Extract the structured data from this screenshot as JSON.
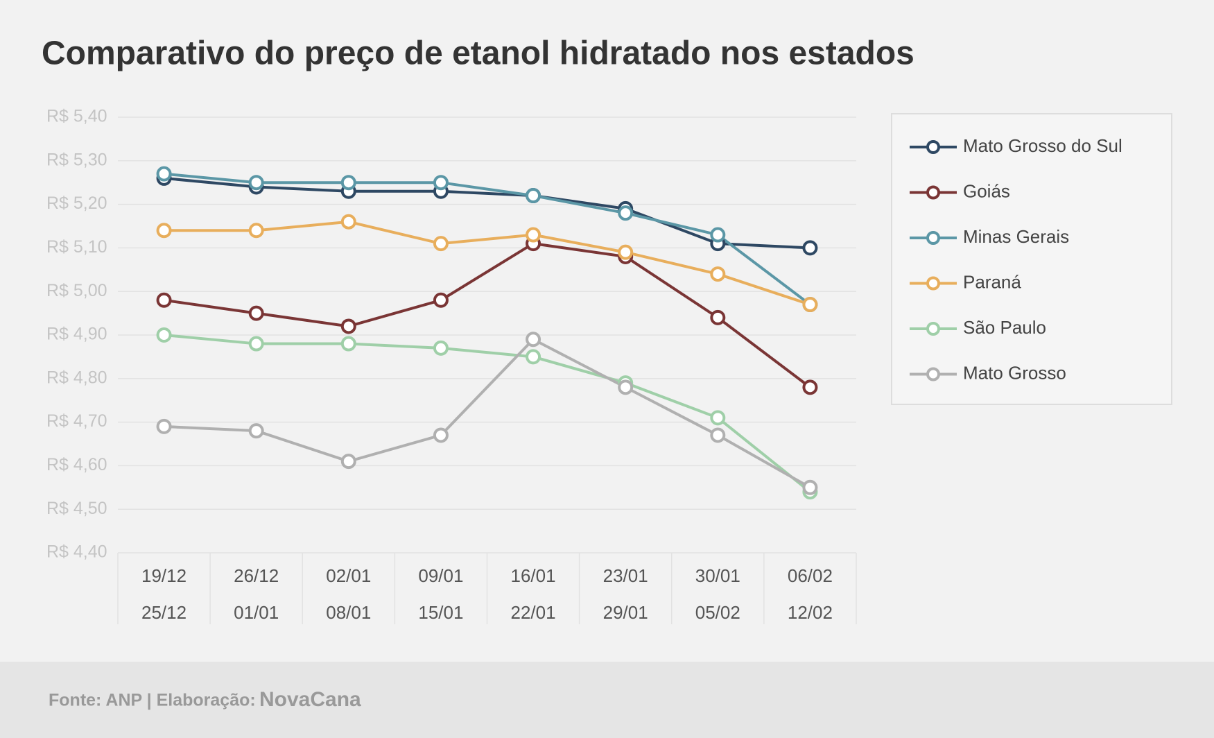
{
  "chart_data": {
    "type": "line",
    "title": "Comparativo do preço de etanol hidratado nos estados",
    "categories": [
      [
        "19/12",
        "25/12"
      ],
      [
        "26/12",
        "01/01"
      ],
      [
        "02/01",
        "08/01"
      ],
      [
        "09/01",
        "15/01"
      ],
      [
        "16/01",
        "22/01"
      ],
      [
        "23/01",
        "29/01"
      ],
      [
        "30/01",
        "05/02"
      ],
      [
        "06/02",
        "12/02"
      ]
    ],
    "series": [
      {
        "name": "Mato Grosso do Sul",
        "color": "#2e4863",
        "values": [
          5.26,
          5.24,
          5.23,
          5.23,
          5.22,
          5.19,
          5.11,
          5.1
        ]
      },
      {
        "name": "Goiás",
        "color": "#7a3535",
        "values": [
          4.98,
          4.95,
          4.92,
          4.98,
          5.11,
          5.08,
          4.94,
          4.78
        ]
      },
      {
        "name": "Minas Gerais",
        "color": "#5b97a6",
        "values": [
          5.27,
          5.25,
          5.25,
          5.25,
          5.22,
          5.18,
          5.13,
          4.97
        ]
      },
      {
        "name": "Paraná",
        "color": "#e8ae5c",
        "values": [
          5.14,
          5.14,
          5.16,
          5.11,
          5.13,
          5.09,
          5.04,
          4.97
        ]
      },
      {
        "name": "São Paulo",
        "color": "#9fcfa8",
        "values": [
          4.9,
          4.88,
          4.88,
          4.87,
          4.85,
          4.79,
          4.71,
          4.54
        ]
      },
      {
        "name": "Mato Grosso",
        "color": "#b0b0b0",
        "values": [
          4.69,
          4.68,
          4.61,
          4.67,
          4.89,
          4.78,
          4.67,
          4.55
        ]
      }
    ],
    "ylim": [
      4.4,
      5.4
    ],
    "yticks": [
      {
        "value": 4.4,
        "label": "R$ 4,40"
      },
      {
        "value": 4.5,
        "label": "R$ 4,50"
      },
      {
        "value": 4.6,
        "label": "R$ 4,60"
      },
      {
        "value": 4.7,
        "label": "R$ 4,70"
      },
      {
        "value": 4.8,
        "label": "R$ 4,80"
      },
      {
        "value": 4.9,
        "label": "R$ 4,90"
      },
      {
        "value": 5.0,
        "label": "R$ 5,00"
      },
      {
        "value": 5.1,
        "label": "R$ 5,10"
      },
      {
        "value": 5.2,
        "label": "R$ 5,20"
      },
      {
        "value": 5.3,
        "label": "R$ 5,30"
      },
      {
        "value": 5.4,
        "label": "R$ 5,40"
      }
    ],
    "grid": true,
    "legend": "right"
  },
  "footer": {
    "source": "Fonte: ANP | Elaboração:",
    "brand": "NovaCana"
  }
}
